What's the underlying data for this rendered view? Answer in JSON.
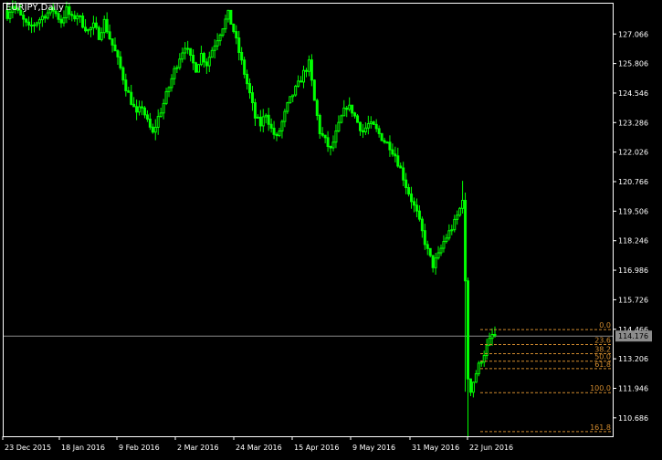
{
  "chart_data": {
    "type": "candlestick",
    "symbol_label": "EURJPY,Daily",
    "colors": {
      "background": "#000000",
      "frame": "#FFFFFF",
      "text": "#FFFFFF",
      "candle": "#00FF00",
      "fib": "#D08A2E",
      "bid_line": "#8C8C8C",
      "bid_tag_bg": "#8C8C8C",
      "bid_tag_text": "#000000"
    },
    "y_axis": {
      "min": 109.9,
      "max": 128.4,
      "ticks": [
        "127.066",
        "125.806",
        "124.546",
        "123.286",
        "122.026",
        "120.766",
        "119.506",
        "118.246",
        "116.986",
        "115.726",
        "114.466",
        "113.206",
        "111.946",
        "110.686"
      ]
    },
    "x_axis": {
      "labels": [
        "23 Dec 2015",
        "18 Jan 2016",
        "9 Feb 2016",
        "2 Mar 2016",
        "24 Mar 2016",
        "15 Apr 2016",
        "9 May 2016",
        "31 May 2016",
        "22 Jun 2016"
      ]
    },
    "bid_price": "114.176",
    "fibonacci": {
      "high": 114.45,
      "low": 111.76,
      "levels": [
        {
          "label": "0.0",
          "ratio": 0.0
        },
        {
          "label": "23.6",
          "ratio": 0.236
        },
        {
          "label": "38.2",
          "ratio": 0.382
        },
        {
          "label": "50.0",
          "ratio": 0.5
        },
        {
          "label": "61.8",
          "ratio": 0.618
        },
        {
          "label": "100.0",
          "ratio": 1.0
        },
        {
          "label": "161.8",
          "ratio": 1.618
        }
      ]
    },
    "price_path_close": [
      [
        0,
        127.9
      ],
      [
        2,
        128.3
      ],
      [
        5,
        127.8
      ],
      [
        8,
        127.3
      ],
      [
        11,
        127.6
      ],
      [
        14,
        127.9
      ],
      [
        17,
        128.1
      ],
      [
        20,
        127.6
      ],
      [
        22,
        128.1
      ],
      [
        24,
        127.7
      ],
      [
        26,
        127.9
      ],
      [
        28,
        127.5
      ],
      [
        30,
        127.2
      ],
      [
        32,
        127.4
      ],
      [
        34,
        127.0
      ],
      [
        36,
        127.6
      ],
      [
        38,
        126.9
      ],
      [
        40,
        126.3
      ],
      [
        42,
        125.6
      ],
      [
        44,
        124.8
      ],
      [
        46,
        124.2
      ],
      [
        48,
        123.6
      ],
      [
        50,
        124.0
      ],
      [
        52,
        123.3
      ],
      [
        54,
        122.8
      ],
      [
        56,
        123.5
      ],
      [
        58,
        124.1
      ],
      [
        60,
        124.8
      ],
      [
        62,
        125.5
      ],
      [
        64,
        126.1
      ],
      [
        66,
        126.6
      ],
      [
        68,
        126.0
      ],
      [
        70,
        125.6
      ],
      [
        72,
        126.2
      ],
      [
        74,
        125.8
      ],
      [
        76,
        126.4
      ],
      [
        78,
        126.9
      ],
      [
        80,
        127.4
      ],
      [
        82,
        127.9
      ],
      [
        84,
        127.2
      ],
      [
        86,
        126.3
      ],
      [
        88,
        125.4
      ],
      [
        90,
        124.5
      ],
      [
        92,
        123.5
      ],
      [
        94,
        123.2
      ],
      [
        96,
        123.7
      ],
      [
        98,
        123.0
      ],
      [
        100,
        122.6
      ],
      [
        102,
        123.3
      ],
      [
        104,
        124.0
      ],
      [
        106,
        124.5
      ],
      [
        108,
        124.9
      ],
      [
        110,
        125.4
      ],
      [
        112,
        125.8
      ],
      [
        114,
        124.2
      ],
      [
        116,
        122.9
      ],
      [
        118,
        122.5
      ],
      [
        120,
        122.1
      ],
      [
        122,
        122.8
      ],
      [
        124,
        123.5
      ],
      [
        126,
        124.0
      ],
      [
        128,
        123.8
      ],
      [
        130,
        123.3
      ],
      [
        132,
        122.9
      ],
      [
        134,
        123.2
      ],
      [
        136,
        123.1
      ],
      [
        138,
        122.8
      ],
      [
        140,
        122.5
      ],
      [
        142,
        122.3
      ],
      [
        144,
        121.9
      ],
      [
        146,
        121.3
      ],
      [
        148,
        120.6
      ],
      [
        150,
        120.0
      ],
      [
        152,
        119.4
      ],
      [
        154,
        118.6
      ],
      [
        156,
        117.8
      ],
      [
        158,
        117.2
      ],
      [
        160,
        117.6
      ],
      [
        162,
        118.2
      ],
      [
        164,
        118.6
      ],
      [
        166,
        119.0
      ],
      [
        168,
        119.6
      ],
      [
        169,
        120.1
      ],
      [
        170,
        116.4
      ],
      [
        171,
        112.4
      ],
      [
        172,
        111.9
      ],
      [
        174,
        112.6
      ],
      [
        176,
        113.2
      ],
      [
        178,
        113.7
      ],
      [
        180,
        114.2
      ],
      [
        181,
        114.18
      ]
    ]
  }
}
